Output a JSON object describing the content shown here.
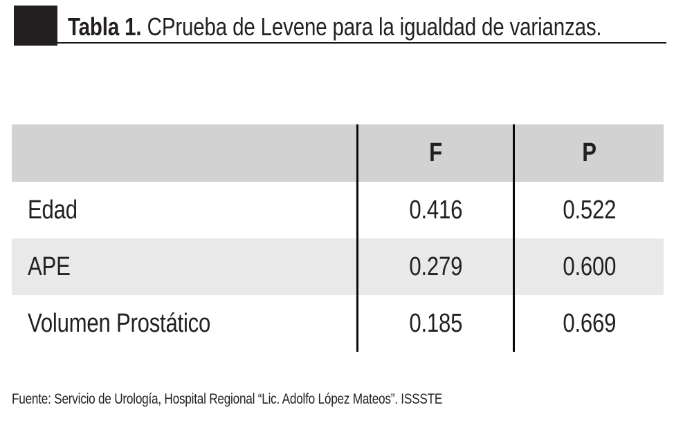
{
  "title": {
    "label": "Tabla 1.",
    "text": "CPrueba de Levene para la igualdad de varianzas."
  },
  "table": {
    "columns": [
      "",
      "F",
      "P"
    ],
    "rows": [
      {
        "label": "Edad",
        "f": "0.416",
        "p": "0.522"
      },
      {
        "label": "APE",
        "f": "0.279",
        "p": "0.600"
      },
      {
        "label": "Volumen Prostático",
        "f": "0.185",
        "p": "0.669"
      }
    ]
  },
  "footer": {
    "source": "Fuente: Servicio de Urología, Hospital Regional “Lic. Adolfo López Mateos”. ISSSTE"
  },
  "colors": {
    "header_row_gray": "#d2d2d2",
    "alt_row_gray": "#e9e9e9",
    "ink_black": "#231f20"
  }
}
